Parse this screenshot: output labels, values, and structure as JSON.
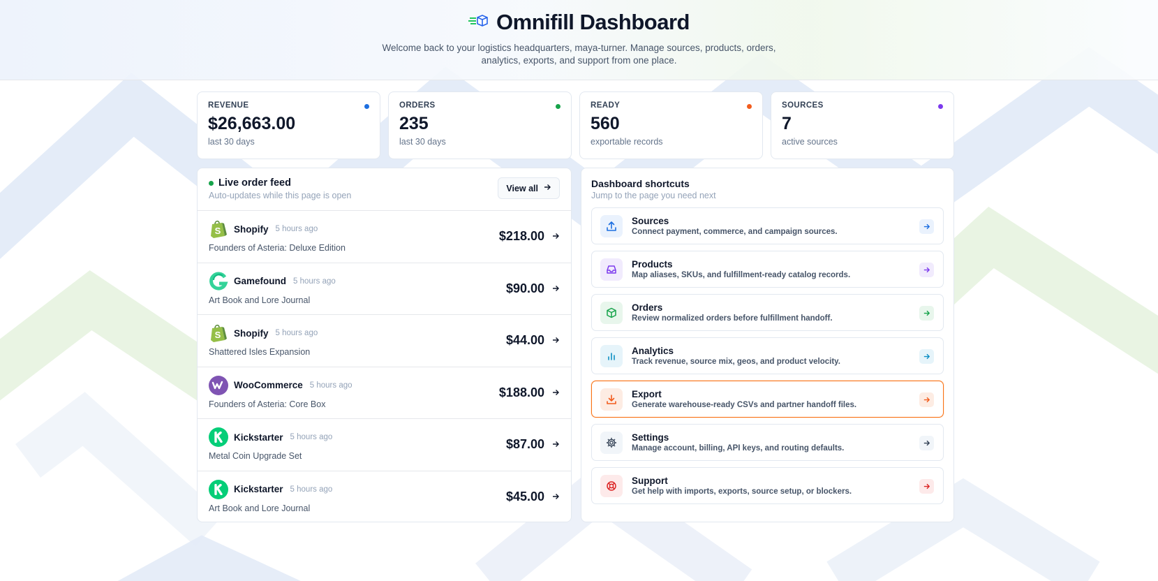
{
  "header": {
    "title": "Omnifill Dashboard",
    "subtitle": "Welcome back to your logistics headquarters, maya-turner. Manage sources, products, orders, analytics, exports, and support from one place.",
    "logo_icon": "delivery-box-icon"
  },
  "stats": [
    {
      "label": "REVENUE",
      "value": "$26,663.00",
      "sub": "last 30 days",
      "color": "#1d6fe0"
    },
    {
      "label": "ORDERS",
      "value": "235",
      "sub": "last 30 days",
      "color": "#16a34a"
    },
    {
      "label": "READY",
      "value": "560",
      "sub": "exportable records",
      "color": "#f25c1d"
    },
    {
      "label": "SOURCES",
      "value": "7",
      "sub": "active sources",
      "color": "#7c3aed"
    }
  ],
  "feed": {
    "title": "Live order feed",
    "subtitle": "Auto-updates while this page is open",
    "view_all": "View all",
    "orders": [
      {
        "source": "Shopify",
        "time": "5 hours ago",
        "product": "Founders of Asteria: Deluxe Edition",
        "amount": "$218.00",
        "icon": "shopify-icon"
      },
      {
        "source": "Gamefound",
        "time": "5 hours ago",
        "product": "Art Book and Lore Journal",
        "amount": "$90.00",
        "icon": "gamefound-icon"
      },
      {
        "source": "Shopify",
        "time": "5 hours ago",
        "product": "Shattered Isles Expansion",
        "amount": "$44.00",
        "icon": "shopify-icon"
      },
      {
        "source": "WooCommerce",
        "time": "5 hours ago",
        "product": "Founders of Asteria: Core Box",
        "amount": "$188.00",
        "icon": "woocommerce-icon"
      },
      {
        "source": "Kickstarter",
        "time": "5 hours ago",
        "product": "Metal Coin Upgrade Set",
        "amount": "$87.00",
        "icon": "kickstarter-icon"
      },
      {
        "source": "Kickstarter",
        "time": "5 hours ago",
        "product": "Art Book and Lore Journal",
        "amount": "$45.00",
        "icon": "kickstarter-icon"
      }
    ]
  },
  "shortcuts": {
    "title": "Dashboard shortcuts",
    "subtitle": "Jump to the page you need next",
    "items": [
      {
        "name": "Sources",
        "desc": "Connect payment, commerce, and campaign sources.",
        "icon": "upload-icon",
        "color": "#1d6fe0",
        "bg": "#eaf2fd"
      },
      {
        "name": "Products",
        "desc": "Map aliases, SKUs, and fulfillment-ready catalog records.",
        "icon": "inbox-icon",
        "color": "#7c3aed",
        "bg": "#f1ebfd"
      },
      {
        "name": "Orders",
        "desc": "Review normalized orders before fulfillment handoff.",
        "icon": "package-icon",
        "color": "#16a34a",
        "bg": "#e8f6ec"
      },
      {
        "name": "Analytics",
        "desc": "Track revenue, source mix, geos, and product velocity.",
        "icon": "bar-chart-icon",
        "color": "#0e8fc4",
        "bg": "#e6f4fa"
      },
      {
        "name": "Export",
        "desc": "Generate warehouse-ready CSVs and partner handoff files.",
        "icon": "download-icon",
        "color": "#f25c1d",
        "bg": "#fdece3",
        "active": true
      },
      {
        "name": "Settings",
        "desc": "Manage account, billing, API keys, and routing defaults.",
        "icon": "gear-icon",
        "color": "#334155",
        "bg": "#f1f5f9"
      },
      {
        "name": "Support",
        "desc": "Get help with imports, exports, source setup, or blockers.",
        "icon": "lifebuoy-icon",
        "color": "#dc2626",
        "bg": "#fdeaea"
      }
    ]
  }
}
